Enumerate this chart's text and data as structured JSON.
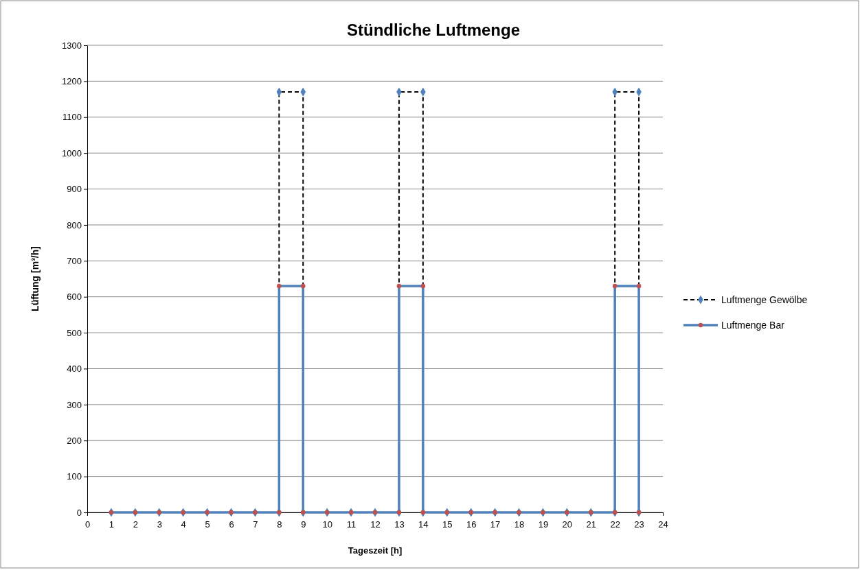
{
  "chart_data": {
    "type": "line",
    "title": "Stündliche Luftmenge",
    "xlabel": "Tageszeit [h]",
    "ylabel": "Lüftung [m³/h]",
    "xlim": [
      0,
      24
    ],
    "xticks": [
      0,
      1,
      2,
      3,
      4,
      5,
      6,
      7,
      8,
      9,
      10,
      11,
      12,
      13,
      14,
      15,
      16,
      17,
      18,
      19,
      20,
      21,
      22,
      23,
      24
    ],
    "ylim": [
      0,
      1300
    ],
    "yticks": [
      0,
      100,
      200,
      300,
      400,
      500,
      600,
      700,
      800,
      900,
      1000,
      1100,
      1200,
      1300
    ],
    "grid": "y",
    "legend": "right",
    "series": [
      {
        "name": "Luftmenge Gewölbe",
        "color": "#000000",
        "line_style": "dashed",
        "marker": "diamond",
        "x": [
          1,
          2,
          3,
          4,
          5,
          6,
          7,
          8,
          8,
          9,
          9,
          10,
          11,
          12,
          13,
          13,
          14,
          14,
          15,
          16,
          17,
          18,
          19,
          20,
          21,
          22,
          22,
          23,
          23
        ],
        "values": [
          0,
          0,
          0,
          0,
          0,
          0,
          0,
          0,
          1170,
          1170,
          0,
          0,
          0,
          0,
          0,
          1170,
          1170,
          0,
          0,
          0,
          0,
          0,
          0,
          0,
          0,
          0,
          1170,
          1170,
          0
        ],
        "colors": [
          "#4f81bd",
          "#4f81bd",
          "#4f81bd",
          "#4f81bd",
          "#4f81bd",
          "#4f81bd",
          "#4f81bd",
          "#4f81bd",
          "#4f81bd",
          "#4f81bd",
          "#4f81bd",
          "#4f81bd",
          "#4f81bd",
          "#4f81bd",
          "#4f81bd",
          "#4f81bd",
          "#4f81bd",
          "#4f81bd",
          "#4f81bd",
          "#4f81bd",
          "#4f81bd",
          "#4f81bd",
          "#4f81bd",
          "#4f81bd",
          "#4f81bd",
          "#4f81bd",
          "#4f81bd",
          "#4f81bd",
          "#4f81bd"
        ]
      },
      {
        "name": "Luftmenge Bar",
        "color": "#4f81bd",
        "line_style": "solid",
        "marker": "circle",
        "x": [
          1,
          2,
          3,
          4,
          5,
          6,
          7,
          8,
          8,
          9,
          9,
          10,
          11,
          12,
          13,
          13,
          14,
          14,
          15,
          16,
          17,
          18,
          19,
          20,
          21,
          22,
          22,
          23,
          23
        ],
        "values": [
          0,
          0,
          0,
          0,
          0,
          0,
          0,
          0,
          630,
          630,
          0,
          0,
          0,
          0,
          0,
          630,
          630,
          0,
          0,
          0,
          0,
          0,
          0,
          0,
          0,
          0,
          630,
          630,
          0
        ],
        "colors": [
          "#c0504d",
          "#c0504d",
          "#c0504d",
          "#c0504d",
          "#c0504d",
          "#c0504d",
          "#c0504d",
          "#c0504d",
          "#c0504d",
          "#c0504d",
          "#c0504d",
          "#c0504d",
          "#c0504d",
          "#c0504d",
          "#c0504d",
          "#c0504d",
          "#c0504d",
          "#c0504d",
          "#c0504d",
          "#c0504d",
          "#c0504d",
          "#c0504d",
          "#c0504d",
          "#c0504d",
          "#c0504d",
          "#c0504d",
          "#c0504d",
          "#c0504d",
          "#c0504d"
        ]
      }
    ]
  }
}
